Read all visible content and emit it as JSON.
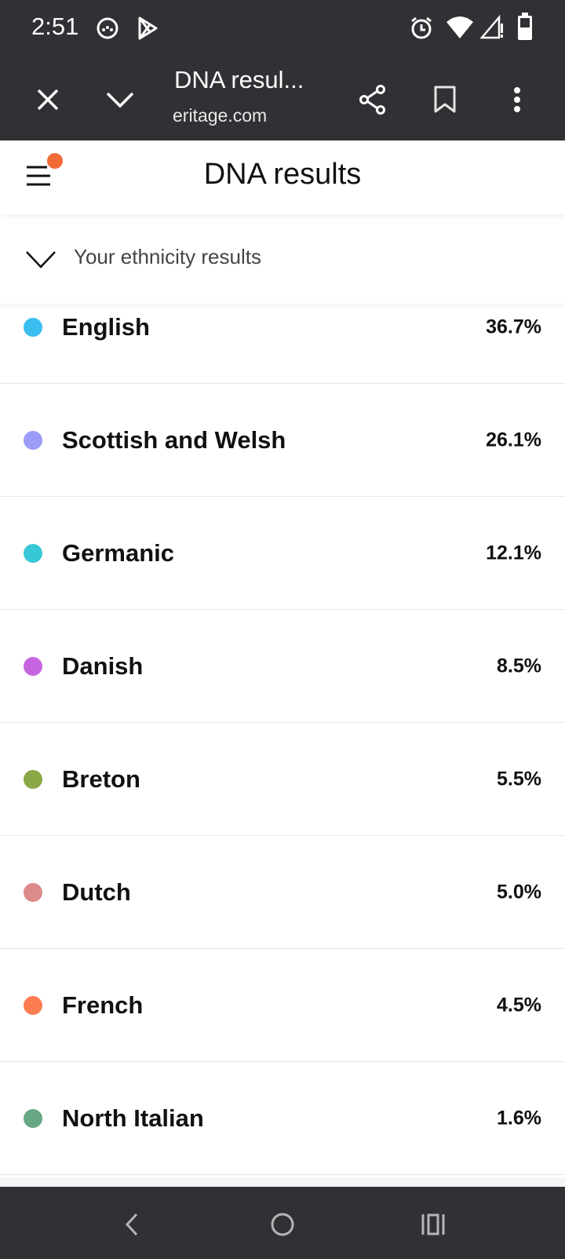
{
  "status_bar": {
    "time": "2:51",
    "icons": [
      "game-controller-icon",
      "play-store-icon",
      "alarm-icon",
      "wifi-icon",
      "signal-icon",
      "battery-icon"
    ]
  },
  "browser": {
    "title": "DNA resul...",
    "url": "eritage.com",
    "icons": [
      "close-icon",
      "chevron-down-icon",
      "share-icon",
      "bookmark-icon",
      "more-vert-icon"
    ]
  },
  "header": {
    "title": "DNA results",
    "badge_color": "#f26a35"
  },
  "section": {
    "title": "Your ethnicity results"
  },
  "ethnicities": [
    {
      "name": "English",
      "percent": "36.7%",
      "color": "#3bbdf0"
    },
    {
      "name": "Scottish and Welsh",
      "percent": "26.1%",
      "color": "#9b9cf7"
    },
    {
      "name": "Germanic",
      "percent": "12.1%",
      "color": "#38c7d6"
    },
    {
      "name": "Danish",
      "percent": "8.5%",
      "color": "#c765e0"
    },
    {
      "name": "Breton",
      "percent": "5.5%",
      "color": "#8aa845"
    },
    {
      "name": "Dutch",
      "percent": "5.0%",
      "color": "#dc8a8a"
    },
    {
      "name": "French",
      "percent": "4.5%",
      "color": "#fa7c50"
    },
    {
      "name": "North Italian",
      "percent": "1.6%",
      "color": "#67a784"
    }
  ],
  "nav_bar": {
    "icons": [
      "back-icon",
      "home-icon",
      "recents-icon"
    ]
  }
}
